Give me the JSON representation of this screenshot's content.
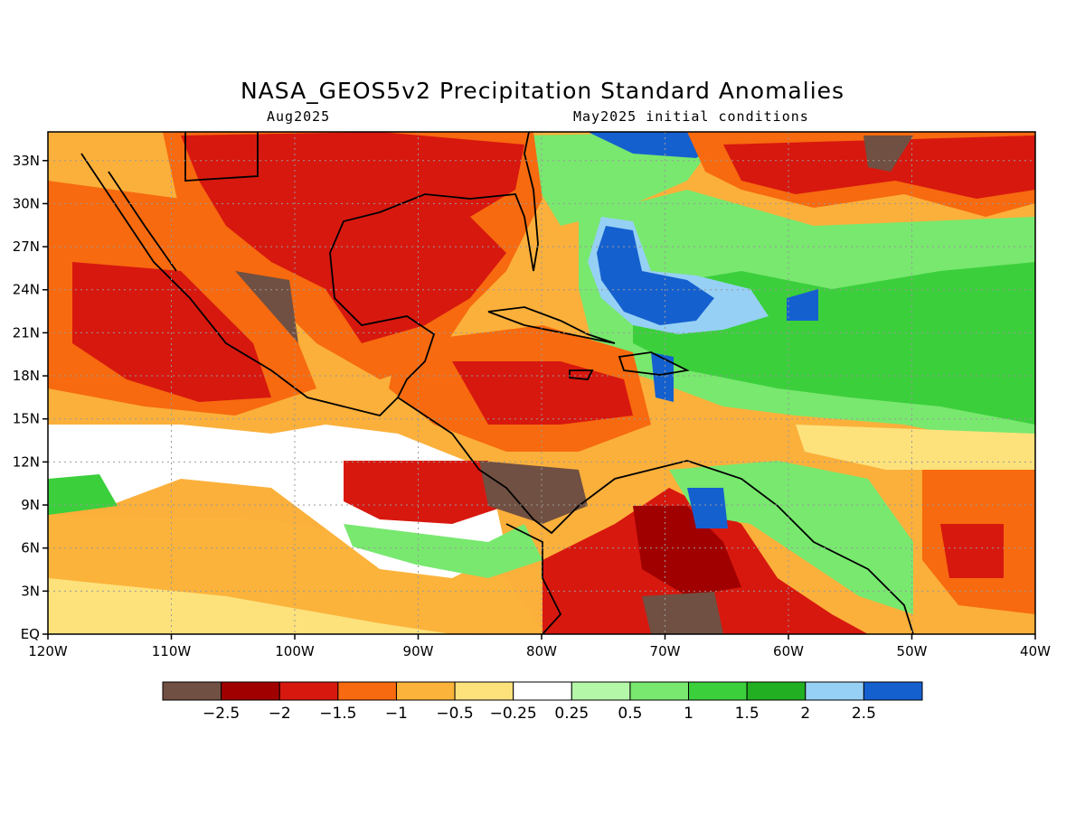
{
  "title": "NASA_GEOS5v2 Precipitation Standard Anomalies",
  "subtitle_left": "Aug2025",
  "subtitle_right": "May2025 initial conditions",
  "map": {
    "lon_range": [
      -120,
      -40
    ],
    "lat_range": [
      0,
      35
    ],
    "lat_ticks": [
      {
        "lat": 33,
        "label": "33N"
      },
      {
        "lat": 30,
        "label": "30N"
      },
      {
        "lat": 27,
        "label": "27N"
      },
      {
        "lat": 24,
        "label": "24N"
      },
      {
        "lat": 21,
        "label": "21N"
      },
      {
        "lat": 18,
        "label": "18N"
      },
      {
        "lat": 15,
        "label": "15N"
      },
      {
        "lat": 12,
        "label": "12N"
      },
      {
        "lat": 9,
        "label": "9N"
      },
      {
        "lat": 6,
        "label": "6N"
      },
      {
        "lat": 3,
        "label": "3N"
      },
      {
        "lat": 0,
        "label": "EQ"
      }
    ],
    "lon_ticks": [
      {
        "lon": -120,
        "label": "120W"
      },
      {
        "lon": -110,
        "label": "110W"
      },
      {
        "lon": -100,
        "label": "100W"
      },
      {
        "lon": -90,
        "label": "90W"
      },
      {
        "lon": -80,
        "label": "80W"
      },
      {
        "lon": -70,
        "label": "70W"
      },
      {
        "lon": -60,
        "label": "60W"
      },
      {
        "lon": -50,
        "label": "50W"
      },
      {
        "lon": -40,
        "label": "40W"
      }
    ],
    "gridlines": "dotted",
    "background_color": "#fbb03b"
  },
  "colorbar": {
    "colors": [
      "#705042",
      "#a00000",
      "#d7180f",
      "#f76a0f",
      "#fbb33b",
      "#fde27c",
      "#ffffff",
      "#b4f7a8",
      "#78e86f",
      "#3ccf3c",
      "#22b022",
      "#96d0f4",
      "#1560cf"
    ],
    "labels": [
      "-2.5",
      "-2",
      "-1.5",
      "-1",
      "-0.5",
      "-0.25",
      "0.25",
      "0.5",
      "1",
      "1.5",
      "2",
      "2.5"
    ]
  },
  "anomaly_regions": [
    {
      "name": "gulf-dry",
      "level": -1.5,
      "color": "#d7180f"
    },
    {
      "name": "mexico-dry",
      "level": -2,
      "color": "#d7180f"
    },
    {
      "name": "central-america-very-dry",
      "level": -2.5,
      "color": "#705042"
    },
    {
      "name": "venezuela-dry",
      "level": -2,
      "color": "#a00000"
    },
    {
      "name": "bahamas-wet",
      "level": 2.5,
      "color": "#1560cf"
    },
    {
      "name": "atlantic-wet",
      "level": 1,
      "color": "#3ccf3c"
    },
    {
      "name": "eastern-pacific-wet-band",
      "level": 0.5,
      "color": "#78e86f"
    },
    {
      "name": "subtropical-atlantic-dry",
      "level": -1.5,
      "color": "#d7180f"
    },
    {
      "name": "equatorial-atlantic-dry",
      "level": -1.5,
      "color": "#d7180f"
    }
  ]
}
